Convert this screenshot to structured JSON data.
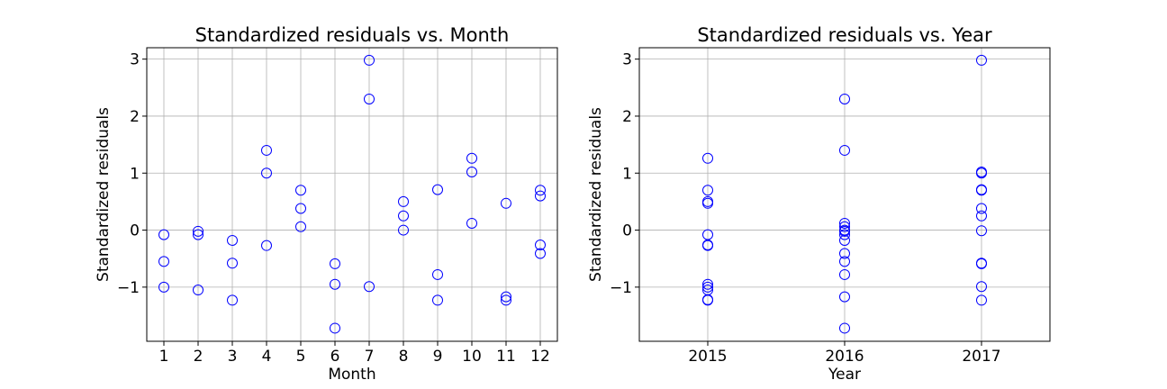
{
  "chart_data": [
    {
      "type": "scatter",
      "title": "Standardized residuals vs. Month",
      "xlabel": "Month",
      "ylabel": "Standardized residuals",
      "xlim": [
        0.5,
        12.5
      ],
      "ylim": [
        -1.95,
        3.2
      ],
      "xticks": [
        1,
        2,
        3,
        4,
        5,
        6,
        7,
        8,
        9,
        10,
        11,
        12
      ],
      "xticklabels": [
        "1",
        "2",
        "3",
        "4",
        "5",
        "6",
        "7",
        "8",
        "9",
        "10",
        "11",
        "12"
      ],
      "yticks": [
        -1,
        0,
        1,
        2,
        3
      ],
      "yticklabels": [
        "−1",
        "0",
        "1",
        "2",
        "3"
      ],
      "grid": true,
      "marker_color": "#0000ff",
      "points": [
        {
          "x": 1,
          "y": -0.08
        },
        {
          "x": 1,
          "y": -0.55
        },
        {
          "x": 1,
          "y": -1.0
        },
        {
          "x": 2,
          "y": -0.02
        },
        {
          "x": 2,
          "y": -0.08
        },
        {
          "x": 2,
          "y": -1.05
        },
        {
          "x": 3,
          "y": -0.18
        },
        {
          "x": 3,
          "y": -0.58
        },
        {
          "x": 3,
          "y": -1.23
        },
        {
          "x": 4,
          "y": 1.4
        },
        {
          "x": 4,
          "y": 1.0
        },
        {
          "x": 4,
          "y": -0.27
        },
        {
          "x": 5,
          "y": 0.7
        },
        {
          "x": 5,
          "y": 0.38
        },
        {
          "x": 5,
          "y": 0.06
        },
        {
          "x": 6,
          "y": -0.59
        },
        {
          "x": 6,
          "y": -0.95
        },
        {
          "x": 6,
          "y": -1.72
        },
        {
          "x": 7,
          "y": 2.98
        },
        {
          "x": 7,
          "y": 2.3
        },
        {
          "x": 7,
          "y": -0.99
        },
        {
          "x": 8,
          "y": 0.5
        },
        {
          "x": 8,
          "y": 0.25
        },
        {
          "x": 8,
          "y": 0.0
        },
        {
          "x": 9,
          "y": 0.71
        },
        {
          "x": 9,
          "y": -0.78
        },
        {
          "x": 9,
          "y": -1.23
        },
        {
          "x": 10,
          "y": 1.26
        },
        {
          "x": 10,
          "y": 1.02
        },
        {
          "x": 10,
          "y": 0.12
        },
        {
          "x": 11,
          "y": 0.47
        },
        {
          "x": 11,
          "y": -1.17
        },
        {
          "x": 11,
          "y": -1.23
        },
        {
          "x": 12,
          "y": 0.7
        },
        {
          "x": 12,
          "y": 0.6
        },
        {
          "x": 12,
          "y": -0.26
        },
        {
          "x": 12,
          "y": -0.41
        }
      ]
    },
    {
      "type": "scatter",
      "title": "Standardized residuals vs. Year",
      "xlabel": "Year",
      "ylabel": "Standardized residuals",
      "xlim": [
        2014.5,
        2017.5
      ],
      "ylim": [
        -1.95,
        3.2
      ],
      "xticks": [
        2015,
        2016,
        2017
      ],
      "xticklabels": [
        "2015",
        "2016",
        "2017"
      ],
      "yticks": [
        -1,
        0,
        1,
        2,
        3
      ],
      "yticklabels": [
        "−1",
        "0",
        "1",
        "2",
        "3"
      ],
      "grid": true,
      "marker_color": "#0000ff",
      "points": [
        {
          "x": 2015,
          "y": 1.26
        },
        {
          "x": 2015,
          "y": 0.7
        },
        {
          "x": 2015,
          "y": 0.5
        },
        {
          "x": 2015,
          "y": 0.47
        },
        {
          "x": 2015,
          "y": -0.08
        },
        {
          "x": 2015,
          "y": -0.26
        },
        {
          "x": 2015,
          "y": -0.27
        },
        {
          "x": 2015,
          "y": -0.95
        },
        {
          "x": 2015,
          "y": -1.0
        },
        {
          "x": 2015,
          "y": -1.05
        },
        {
          "x": 2015,
          "y": -1.22
        },
        {
          "x": 2015,
          "y": -1.23
        },
        {
          "x": 2016,
          "y": 2.3
        },
        {
          "x": 2016,
          "y": 1.4
        },
        {
          "x": 2016,
          "y": 0.12
        },
        {
          "x": 2016,
          "y": 0.06
        },
        {
          "x": 2016,
          "y": 0.0
        },
        {
          "x": 2016,
          "y": -0.02
        },
        {
          "x": 2016,
          "y": -0.08
        },
        {
          "x": 2016,
          "y": -0.18
        },
        {
          "x": 2016,
          "y": -0.41
        },
        {
          "x": 2016,
          "y": -0.55
        },
        {
          "x": 2016,
          "y": -0.78
        },
        {
          "x": 2016,
          "y": -1.17
        },
        {
          "x": 2016,
          "y": -1.72
        },
        {
          "x": 2017,
          "y": 2.98
        },
        {
          "x": 2017,
          "y": 1.02
        },
        {
          "x": 2017,
          "y": 1.0
        },
        {
          "x": 2017,
          "y": 0.71
        },
        {
          "x": 2017,
          "y": 0.7
        },
        {
          "x": 2017,
          "y": 0.38
        },
        {
          "x": 2017,
          "y": 0.25
        },
        {
          "x": 2017,
          "y": -0.01
        },
        {
          "x": 2017,
          "y": -0.58
        },
        {
          "x": 2017,
          "y": -0.59
        },
        {
          "x": 2017,
          "y": -0.99
        },
        {
          "x": 2017,
          "y": -1.23
        }
      ]
    }
  ]
}
